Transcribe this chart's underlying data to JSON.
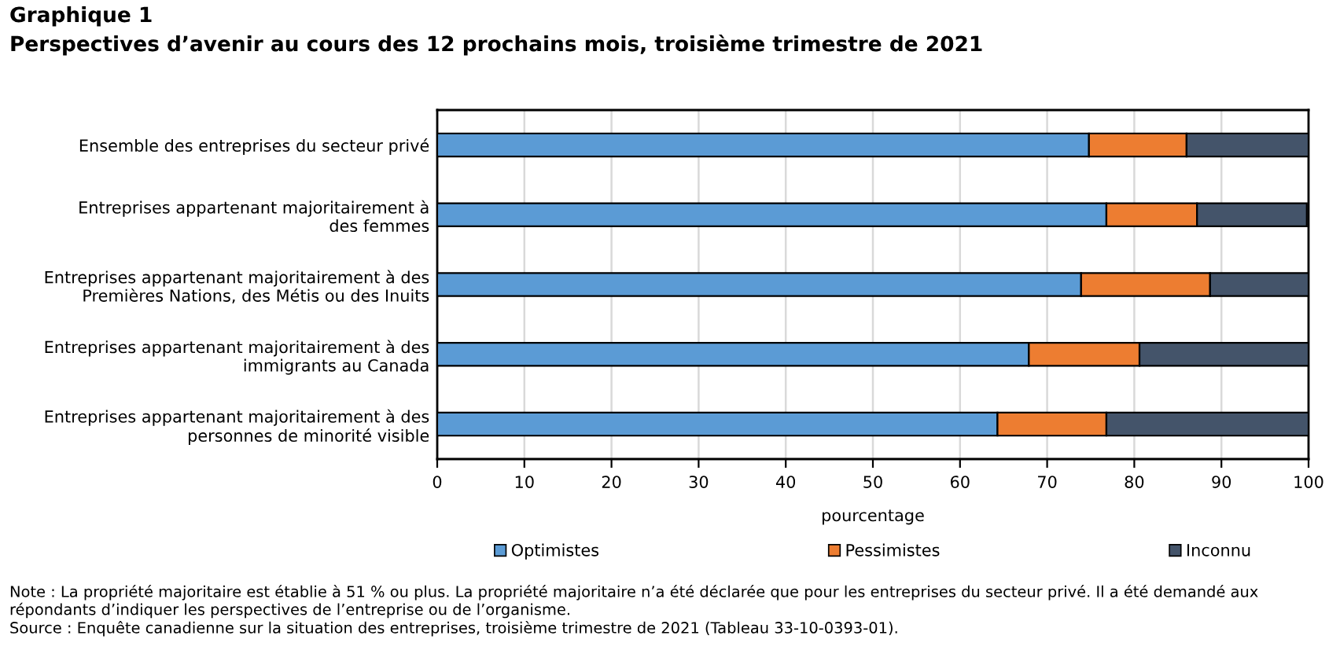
{
  "chart_data": {
    "type": "bar",
    "orientation": "horizontal",
    "stacked": true,
    "title": "Graphique 1",
    "subtitle": "Perspectives d’avenir au cours des 12 prochains mois, troisième trimestre de 2021",
    "xlabel": "pourcentage",
    "categories": [
      "Ensemble des entreprises du secteur privé",
      "Entreprises appartenant majoritairement à\ndes femmes",
      "Entreprises appartenant majoritairement à des\nPremières Nations, des Métis ou des Inuits",
      "Entreprises appartenant majoritairement à des\nimmigrants au Canada",
      "Entreprises appartenant majoritairement à des\npersonnes de minorité visible"
    ],
    "series": [
      {
        "name": "Optimistes",
        "color": "#5b9bd5",
        "values": [
          74.8,
          76.8,
          73.9,
          67.9,
          64.3
        ]
      },
      {
        "name": "Pessimistes",
        "color": "#ed7d31",
        "values": [
          11.2,
          10.4,
          14.8,
          12.7,
          12.5
        ]
      },
      {
        "name": "Inconnu",
        "color": "#44546a",
        "values": [
          14.0,
          12.6,
          11.3,
          19.4,
          23.2
        ]
      }
    ],
    "xlim": [
      0,
      100
    ],
    "xticks": [
      0,
      10,
      20,
      30,
      40,
      50,
      60,
      70,
      80,
      90,
      100
    ],
    "grid": "x",
    "legend": "bottom",
    "annotations": [
      "Note : La propriété majoritaire est établie à 51 % ou plus. La propriété majoritaire n’a été déclarée que pour les entreprises du secteur privé. Il a été demandé aux répondants d’indiquer les perspectives de l’entreprise ou de l’organisme.",
      "Source : Enquête canadienne sur la situation des entreprises, troisième trimestre de 2021 (Tableau 33-10-0393-01)."
    ]
  }
}
